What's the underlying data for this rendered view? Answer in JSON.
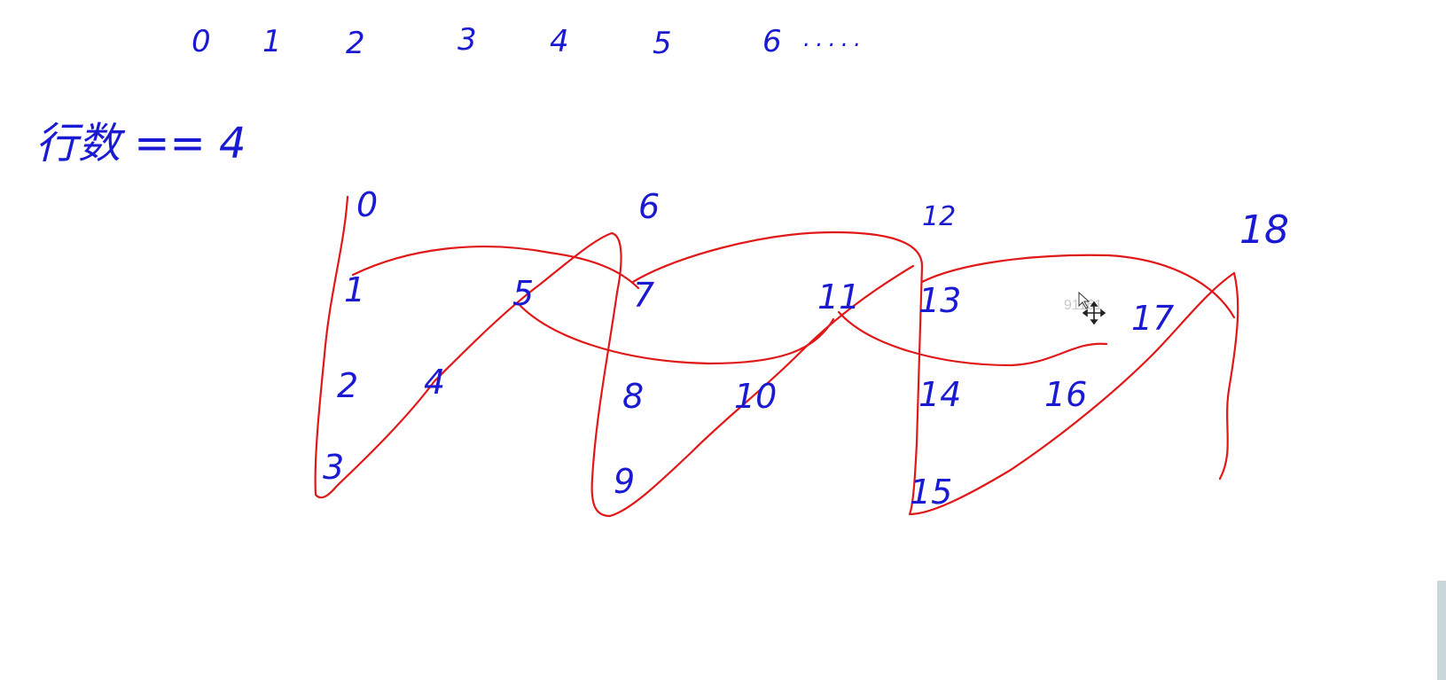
{
  "top_sequence": [
    "0",
    "1",
    "2",
    "3",
    "4",
    "5",
    "6",
    "....."
  ],
  "row_count_label": "行数 == 4",
  "zigzag_numbers": [
    "0",
    "1",
    "2",
    "3",
    "4",
    "5",
    "6",
    "7",
    "8",
    "9",
    "10",
    "11",
    "12",
    "13",
    "14",
    "15",
    "16",
    "17",
    "18"
  ],
  "watermark": "91161",
  "colors": {
    "ink_blue": "#1a1ad2",
    "ink_red": "#e01818",
    "watermark": "#c8c8c8",
    "scrollbar": "#c9d6da"
  }
}
